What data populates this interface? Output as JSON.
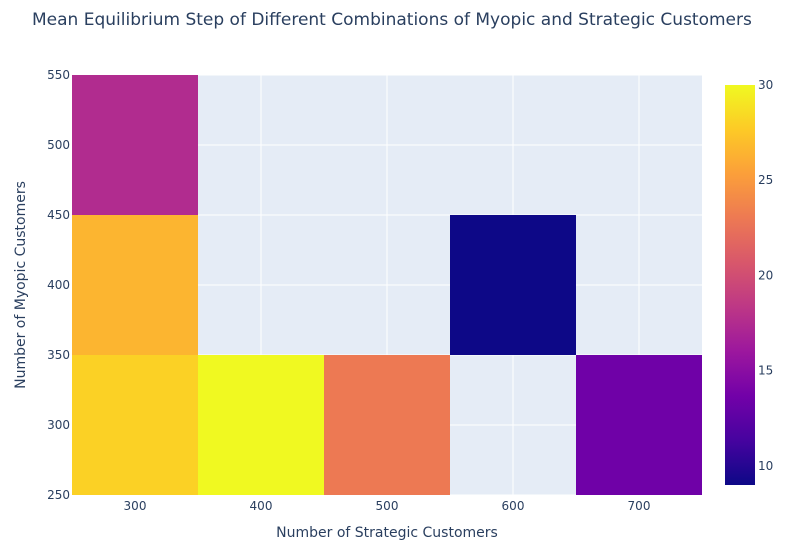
{
  "chart_data": {
    "type": "heatmap",
    "title": "Mean Equilibrium Step of Different Combinations of Myopic and Strategic Customers",
    "xlabel": "Number of Strategic Customers",
    "ylabel": "Number of Myopic Customers",
    "x_ticks": [
      "300",
      "400",
      "500",
      "600",
      "700"
    ],
    "y_ticks": [
      "250",
      "300",
      "350",
      "400",
      "450",
      "500",
      "550"
    ],
    "xlim": [
      250,
      750
    ],
    "ylim": [
      250,
      550
    ],
    "cells": [
      {
        "x_range": [
          250,
          350
        ],
        "y_range": [
          450,
          550
        ],
        "value": 17.5
      },
      {
        "x_range": [
          250,
          350
        ],
        "y_range": [
          350,
          450
        ],
        "value": 26.5
      },
      {
        "x_range": [
          250,
          350
        ],
        "y_range": [
          250,
          350
        ],
        "value": 28
      },
      {
        "x_range": [
          350,
          450
        ],
        "y_range": [
          250,
          350
        ],
        "value": 30
      },
      {
        "x_range": [
          450,
          550
        ],
        "y_range": [
          250,
          350
        ],
        "value": 23
      },
      {
        "x_range": [
          550,
          650
        ],
        "y_range": [
          350,
          450
        ],
        "value": 9
      },
      {
        "x_range": [
          650,
          750
        ],
        "y_range": [
          250,
          350
        ],
        "value": 13.5
      }
    ],
    "colorscale": {
      "name": "plasma",
      "range": [
        9,
        30
      ],
      "ticks": [
        "10",
        "15",
        "20",
        "25",
        "30"
      ],
      "stops": [
        "#0d0887",
        "#46039f",
        "#7201a8",
        "#9c179e",
        "#bd3786",
        "#d8576b",
        "#ed7953",
        "#fb9f3a",
        "#fdca26",
        "#f0f921"
      ]
    },
    "plot_background": "#e5ecf6",
    "grid_color": "#ffffff",
    "grid": true
  }
}
